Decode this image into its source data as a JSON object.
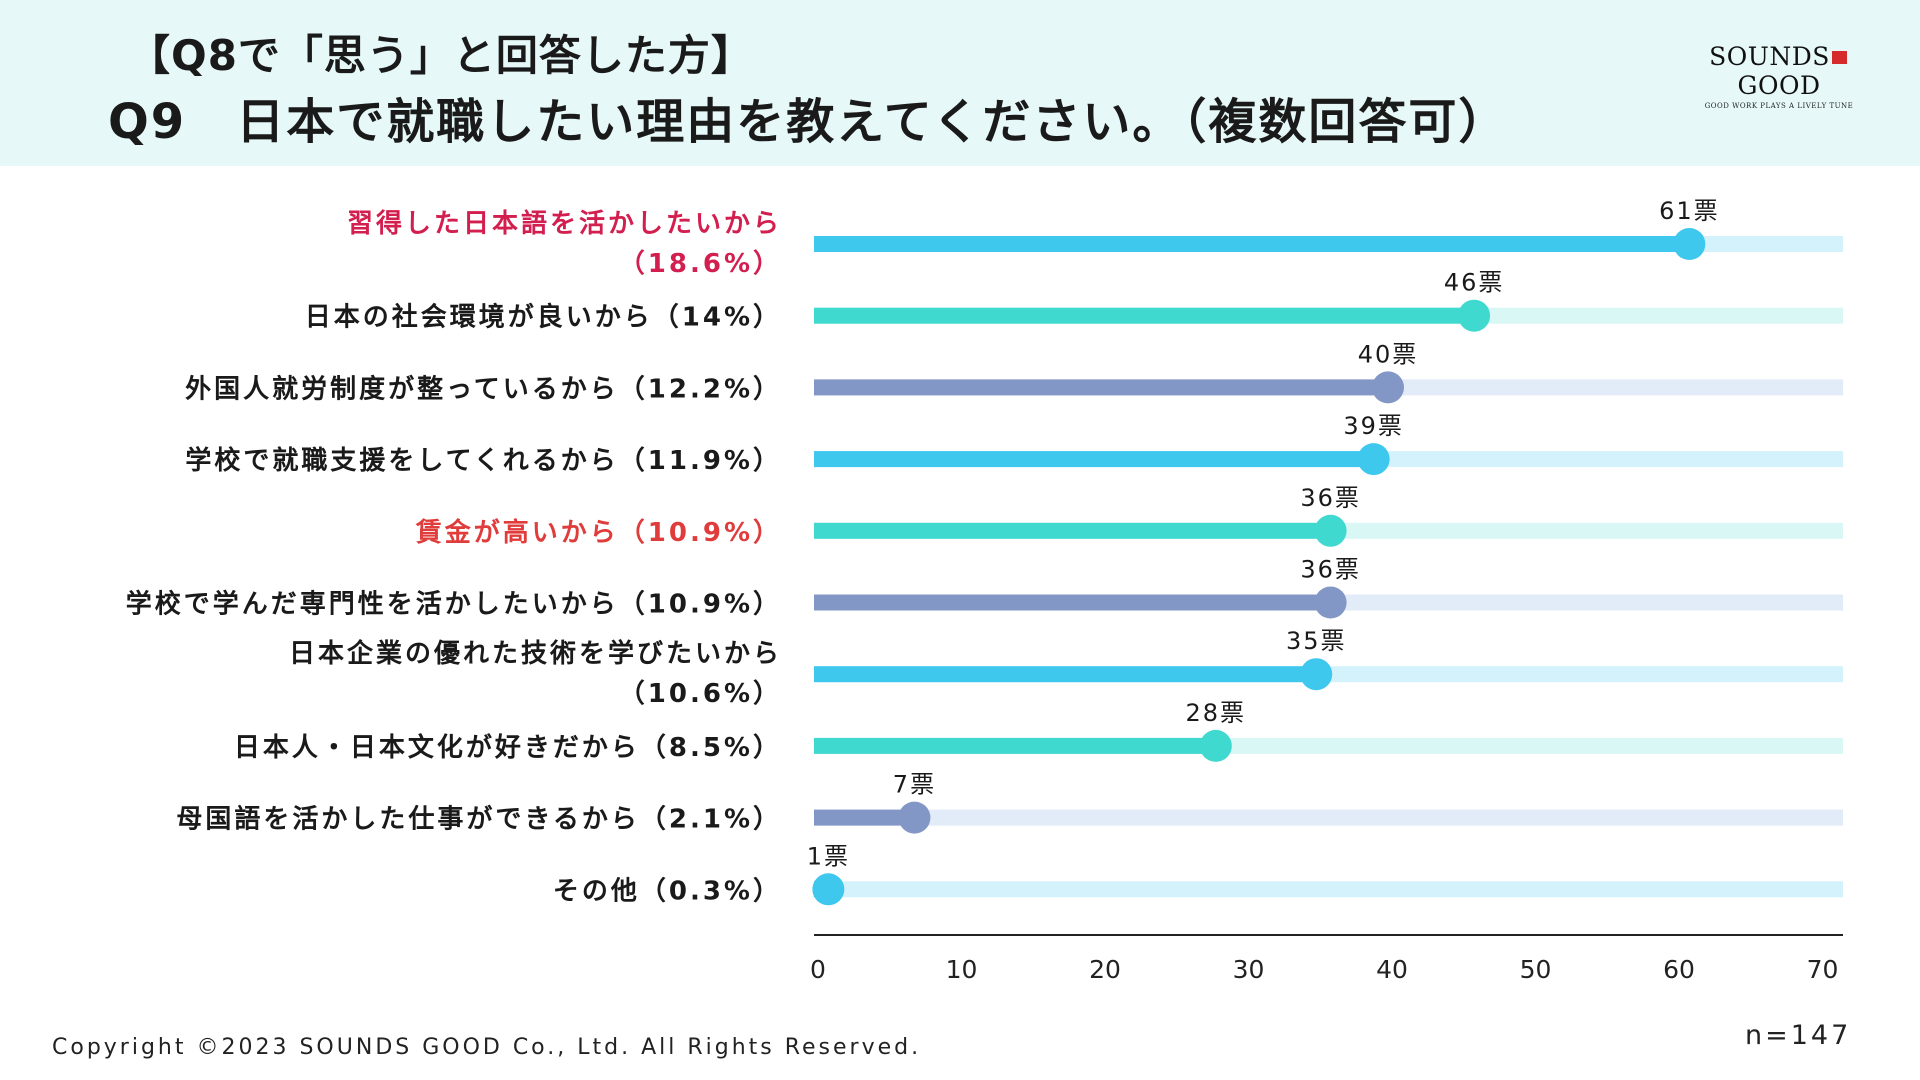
{
  "header": {
    "subtitle": "【Q8で「思う」と回答した方】",
    "title": "Q9　日本で就職したい理由を教えてください。（複数回答可）"
  },
  "logo": {
    "brand_left": "SOUNDS",
    "brand_right": "GOOD",
    "tagline": "GOOD WORK PLAYS A LIVELY TUNE"
  },
  "chart_data": {
    "type": "bar",
    "orientation": "horizontal",
    "categories": [
      {
        "line1": "習得した日本語を活かしたいから",
        "line2": "（18.6%）",
        "highlight": true
      },
      {
        "line1": "日本の社会環境が良いから（14%）",
        "line2": "",
        "highlight": false
      },
      {
        "line1": "外国人就労制度が整っているから（12.2%）",
        "line2": "",
        "highlight": false
      },
      {
        "line1": "学校で就職支援をしてくれるから（11.9%）",
        "line2": "",
        "highlight": false
      },
      {
        "line1": "賃金が高いから（10.9%）",
        "line2": "",
        "highlight": true
      },
      {
        "line1": "学校で学んだ専門性を活かしたいから（10.9%）",
        "line2": "",
        "highlight": false
      },
      {
        "line1": "日本企業の優れた技術を学びたいから",
        "line2": "（10.6%）",
        "highlight": false
      },
      {
        "line1": "日本人・日本文化が好きだから（8.5%）",
        "line2": "",
        "highlight": false
      },
      {
        "line1": "母国語を活かした仕事ができるから（2.1%）",
        "line2": "",
        "highlight": false
      },
      {
        "line1": "その他（0.3%）",
        "line2": "",
        "highlight": false
      }
    ],
    "values": [
      61,
      46,
      40,
      39,
      36,
      36,
      35,
      28,
      7,
      1
    ],
    "value_labels": [
      "61票",
      "46票",
      "40票",
      "39票",
      "36票",
      "36票",
      "35票",
      "28票",
      "7票",
      "1票"
    ],
    "xlim": [
      0,
      72
    ],
    "xticks": [
      0,
      10,
      20,
      30,
      40,
      50,
      60,
      70
    ],
    "xlabel": "",
    "ylabel": "",
    "colors": [
      "#3ec8ee",
      "#3fd9d0",
      "#8297c6",
      "#3ec8ee",
      "#3fd9d0",
      "#8297c6",
      "#3ec8ee",
      "#3fd9d0",
      "#8297c6",
      "#3ec8ee"
    ],
    "track_colors": [
      "#d4f2fb",
      "#d9f7f4",
      "#e2ebf8",
      "#d4f2fb",
      "#d9f7f4",
      "#e2ebf8",
      "#d4f2fb",
      "#d9f7f4",
      "#e2ebf8",
      "#d4f2fb"
    ],
    "highlight_colors": [
      "#d21f4f",
      "#e03c3c"
    ],
    "label_color": "#1a1a1a",
    "axis_color": "#222222"
  },
  "footer": {
    "copyright": "Copyright ©2023 SOUNDS GOOD Co., Ltd. All Rights Reserved.",
    "sample_size": "n=147"
  }
}
